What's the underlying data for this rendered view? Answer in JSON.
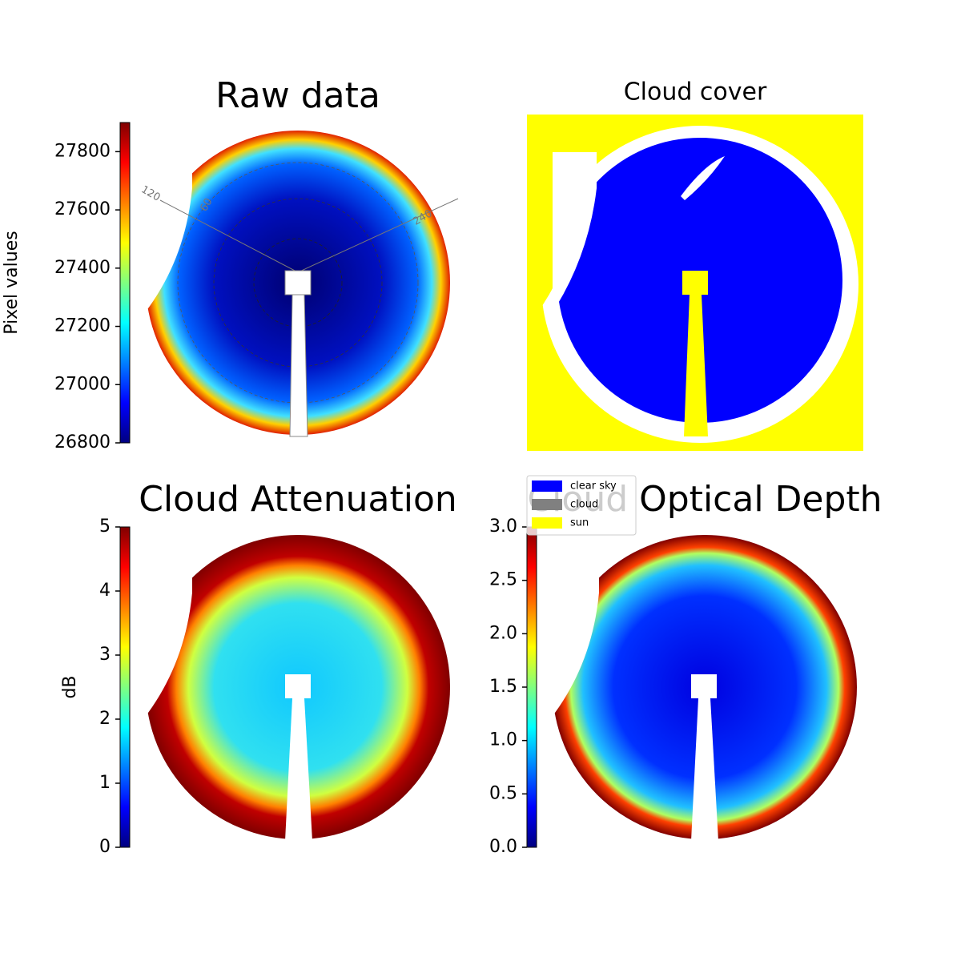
{
  "panels": [
    {
      "title": "Raw data",
      "colorbar": {
        "label": "Pixel values",
        "lim": [
          26800,
          27900
        ],
        "ticks": [
          26800,
          27000,
          27200,
          27400,
          27600,
          27800
        ]
      },
      "polar_labels": [
        "120",
        "60",
        "240"
      ]
    },
    {
      "title": "Cloud cover",
      "legend": [
        {
          "name": "clear sky",
          "color": "#0000ff"
        },
        {
          "name": "cloud",
          "color": "#808080"
        },
        {
          "name": "sun",
          "color": "#ffff00"
        }
      ]
    },
    {
      "title": "Cloud Attenuation",
      "colorbar": {
        "label": "dB",
        "lim": [
          0,
          5
        ],
        "ticks": [
          0,
          1,
          2,
          3,
          4,
          5
        ]
      }
    },
    {
      "title": "Cloud Optical Depth",
      "colorbar": {
        "lim": [
          0,
          3
        ],
        "ticks": [
          {
            "value": 0,
            "label": "0.0"
          },
          {
            "value": 0.5,
            "label": "0.5"
          },
          {
            "value": 1,
            "label": "1.0"
          },
          {
            "value": 1.5,
            "label": "1.5"
          },
          {
            "value": 2,
            "label": "2.0"
          },
          {
            "value": 2.5,
            "label": "2.5"
          },
          {
            "value": 3,
            "label": "3.0"
          }
        ]
      }
    }
  ]
}
